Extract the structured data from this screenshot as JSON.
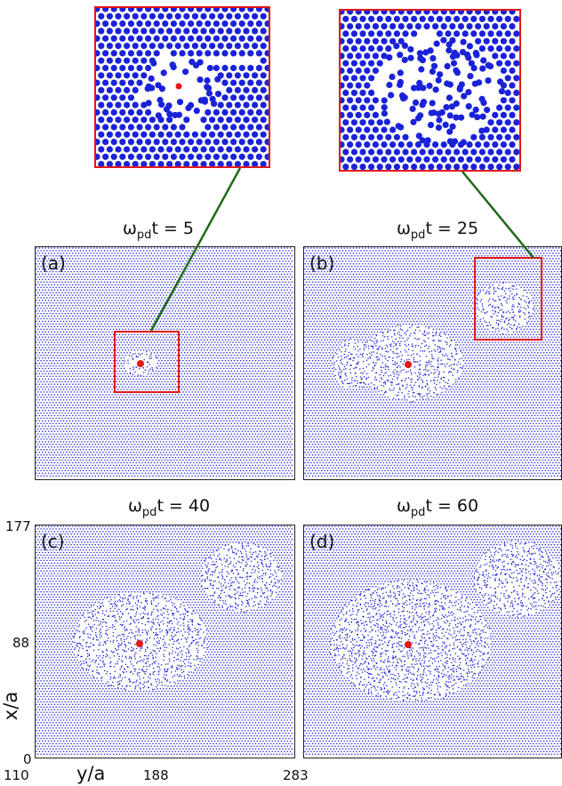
{
  "figure": {
    "panels": [
      {
        "id": "a",
        "label": "(a)",
        "title_omega": "ω",
        "title_sub": "pd",
        "title_rest": "t = 5"
      },
      {
        "id": "b",
        "label": "(b)",
        "title_omega": "ω",
        "title_sub": "pd",
        "title_rest": "t = 25"
      },
      {
        "id": "c",
        "label": "(c)",
        "title_omega": "ω",
        "title_sub": "pd",
        "title_rest": "t = 40"
      },
      {
        "id": "d",
        "label": "(d)",
        "title_omega": "ω",
        "title_sub": "pd",
        "title_rest": "t = 60"
      }
    ],
    "axes": {
      "x_label": "y/a",
      "y_label": "x/a",
      "x_ticks": [
        "110",
        "188",
        "283"
      ],
      "y_ticks": [
        "177",
        "88",
        "0"
      ]
    },
    "colors": {
      "particle": "#1a22d8",
      "intruder": "#e01818",
      "inset_border": "#e01818",
      "connector": "#1e6a14",
      "frame": "#222222"
    }
  }
}
